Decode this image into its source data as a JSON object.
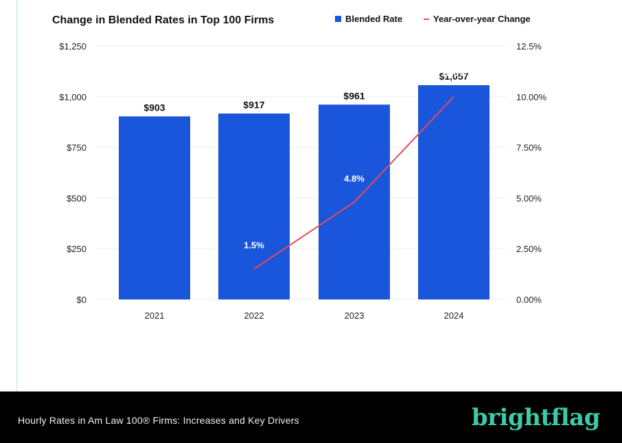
{
  "chart_data": {
    "type": "bar",
    "title": "Change in Blended Rates in Top 100 Firms",
    "categories": [
      "2021",
      "2022",
      "2023",
      "2024"
    ],
    "series": [
      {
        "name": "Blended Rate",
        "type": "bar",
        "axis": "left",
        "values": [
          903,
          917,
          961,
          1057
        ],
        "labels": [
          "$903",
          "$917",
          "$961",
          "$1,057"
        ],
        "color": "#1a56db"
      },
      {
        "name": "Year-over-year Change",
        "type": "line",
        "axis": "right",
        "values": [
          null,
          1.5,
          4.8,
          10.0
        ],
        "labels": [
          "",
          "1.5%",
          "4.8%",
          "10.0%"
        ],
        "color": "#e8495a"
      }
    ],
    "y_left": {
      "ylim": [
        0,
        1250
      ],
      "ticks": [
        0,
        250,
        500,
        750,
        1000,
        1250
      ],
      "tick_labels": [
        "$0",
        "$250",
        "$500",
        "$750",
        "$1,000",
        "$1,250"
      ]
    },
    "y_right": {
      "ylim": [
        0,
        12.5
      ],
      "ticks": [
        0,
        2.5,
        5,
        7.5,
        10,
        12.5
      ],
      "tick_labels": [
        "0.00%",
        "2.50%",
        "5.00%",
        "7.50%",
        "10.00%",
        "12.5%"
      ]
    },
    "grid": true,
    "legend": "top-right"
  },
  "footer": {
    "caption": "Hourly Rates in Am Law 100® Firms: Increases and Key Drivers",
    "brand": "brightflag"
  }
}
